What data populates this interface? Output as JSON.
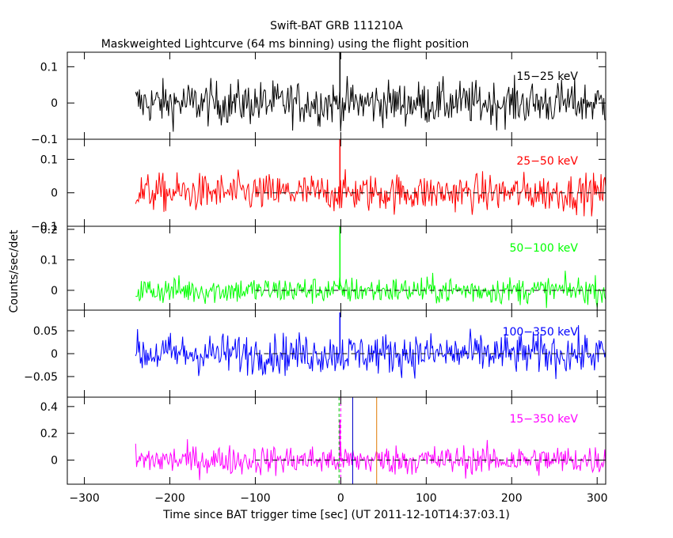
{
  "title": "Swift-BAT GRB 111210A",
  "subtitle": "Maskweighted Lightcurve (64 ms binning) using the flight position",
  "chart_data": {
    "type": "line",
    "x_axis": {
      "label": "Time since BAT trigger time [sec] (UT 2011-12-10T14:37:03.1)",
      "range": [
        -320,
        310
      ],
      "ticks": [
        -300,
        -200,
        -100,
        0,
        100,
        200,
        300
      ],
      "tick_labels": [
        "−300",
        "−200",
        "−100",
        "0",
        "100",
        "200",
        "300"
      ]
    },
    "ylabel": "Counts/sec/det",
    "data_start": -240,
    "data_end": 310,
    "vertical_lines": [
      {
        "x": -2,
        "color": "#00c000",
        "style": "dashed"
      },
      {
        "x": 0,
        "color": "#ff00ff",
        "style": "dashed"
      },
      {
        "x": 14,
        "color": "#0000c8",
        "style": "solid"
      },
      {
        "x": 42,
        "color": "#e07a00",
        "style": "solid"
      }
    ],
    "panels": [
      {
        "band": "15−25 keV",
        "color": "#000000",
        "ylim": [
          -0.1,
          0.14
        ],
        "yticks": [
          -0.1,
          0,
          0.1
        ],
        "ytick_labels": [
          "−0.1",
          "0",
          "0.1"
        ],
        "noise_sigma": 0.03,
        "peak": {
          "x": -1,
          "y": 0.14
        },
        "baseline_from": null
      },
      {
        "band": "25−50 keV",
        "color": "#ff0000",
        "ylim": [
          -0.1,
          0.16
        ],
        "yticks": [
          -0.1,
          0,
          0.1
        ],
        "ytick_labels": [
          "−0.1",
          "0",
          "0.1"
        ],
        "noise_sigma": 0.028,
        "peak": {
          "x": -1,
          "y": 0.16
        },
        "baseline_from": -100
      },
      {
        "band": "50−100 keV",
        "color": "#00ff00",
        "ylim": [
          -0.065,
          0.21
        ],
        "yticks": [
          0,
          0.1,
          0.2
        ],
        "ytick_labels": [
          "0",
          "0.1",
          "0.2"
        ],
        "noise_sigma": 0.022,
        "peak": {
          "x": -1,
          "y": 0.21
        },
        "baseline_from": -100
      },
      {
        "band": "100−350 keV",
        "color": "#0000ff",
        "ylim": [
          -0.095,
          0.095
        ],
        "yticks": [
          -0.05,
          0,
          0.05
        ],
        "ytick_labels": [
          "−0.05",
          "0",
          "0.05"
        ],
        "noise_sigma": 0.022,
        "peak": {
          "x": -1,
          "y": 0.09
        },
        "baseline_from": -100
      },
      {
        "band": "15−350 keV",
        "color": "#ff00ff",
        "ylim": [
          -0.18,
          0.47
        ],
        "yticks": [
          0,
          0.2,
          0.4
        ],
        "ytick_labels": [
          "0",
          "0.2",
          "0.4"
        ],
        "noise_sigma": 0.055,
        "peak": {
          "x": -1,
          "y": 0.3
        },
        "baseline_from": -100
      }
    ]
  }
}
